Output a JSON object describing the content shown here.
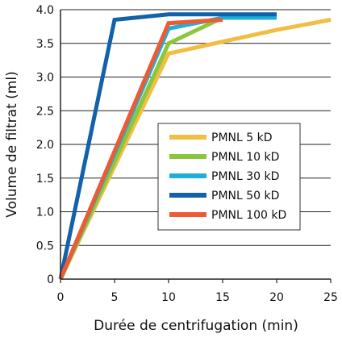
{
  "chart_data": {
    "type": "line",
    "title": "",
    "xlabel": "Durée de centrifugation (min)",
    "ylabel": "Volume de filtrat (ml)",
    "xlim": [
      0,
      25
    ],
    "ylim": [
      0,
      4.0
    ],
    "x_ticks": [
      {
        "value": 0,
        "label": "0"
      },
      {
        "value": 5,
        "label": "5"
      },
      {
        "value": 10,
        "label": "10"
      },
      {
        "value": 15,
        "label": "15"
      },
      {
        "value": 20,
        "label": "20"
      },
      {
        "value": 25,
        "label": "25"
      }
    ],
    "y_ticks": [
      {
        "value": 0,
        "label": "0"
      },
      {
        "value": 0.5,
        "label": "0.5"
      },
      {
        "value": 1.0,
        "label": "1.0"
      },
      {
        "value": 1.5,
        "label": "1.5"
      },
      {
        "value": 2.0,
        "label": "2.0"
      },
      {
        "value": 2.5,
        "label": "2.5"
      },
      {
        "value": 3.0,
        "label": "3.0"
      },
      {
        "value": 3.5,
        "label": "3.5"
      },
      {
        "value": 4.0,
        "label": "4.0"
      }
    ],
    "grid": "horizontal",
    "legend_position": "right",
    "series": [
      {
        "name": "PMNL 5 kD",
        "color": "#F0BE42",
        "x": [
          0,
          10,
          20,
          25
        ],
        "y": [
          0,
          3.35,
          3.7,
          3.85
        ]
      },
      {
        "name": "PMNL 10 kD",
        "color": "#8CC63F",
        "x": [
          0,
          10,
          15,
          20
        ],
        "y": [
          0,
          3.5,
          3.88,
          3.88
        ]
      },
      {
        "name": "PMNL 30 kD",
        "color": "#1EAFD8",
        "x": [
          0,
          10,
          15,
          20
        ],
        "y": [
          0,
          3.72,
          3.88,
          3.88
        ]
      },
      {
        "name": "PMNL 50 kD",
        "color": "#1361AA",
        "x": [
          0,
          5,
          10,
          20
        ],
        "y": [
          0,
          3.85,
          3.93,
          3.93
        ]
      },
      {
        "name": "PMNL 100 kD",
        "color": "#EE5A33",
        "x": [
          0,
          10,
          15
        ],
        "y": [
          0,
          3.8,
          3.85
        ]
      }
    ]
  }
}
